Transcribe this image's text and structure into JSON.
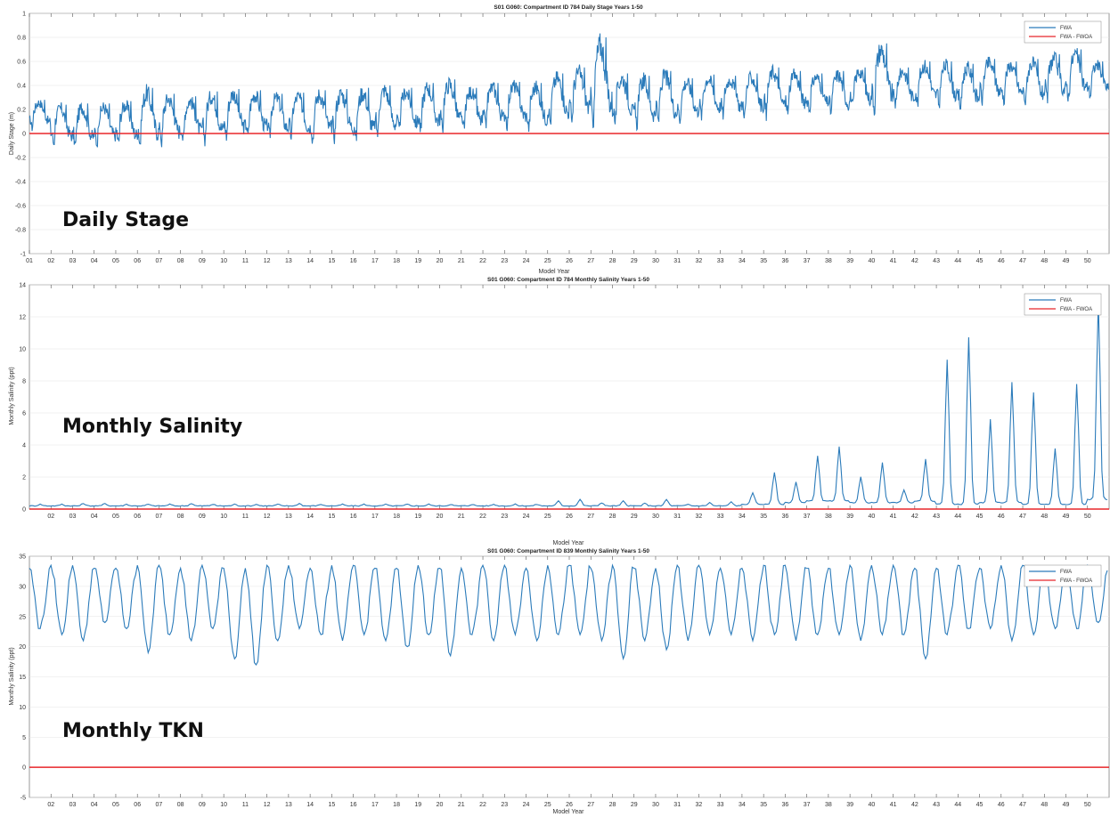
{
  "colors": {
    "fwa": "#2b7bba",
    "diff": "#e8262a",
    "grid": "#e6e6e6"
  },
  "chart_data": [
    {
      "type": "line",
      "title": "S01 G060: Compartment ID 784 Daily Stage Years 1-50",
      "xlabel": "Model Year",
      "ylabel": "Daily Stage (m)",
      "overlay_label": "Daily Stage",
      "ylim": [
        -1,
        1
      ],
      "yticks": [
        "1",
        "0.8",
        "0.6",
        "0.4",
        "0.2",
        "0",
        "-0.2",
        "-0.4",
        "-0.6",
        "-0.8",
        "-1"
      ],
      "xticks": [
        "01",
        "02",
        "03",
        "04",
        "05",
        "06",
        "07",
        "08",
        "09",
        "10",
        "11",
        "12",
        "13",
        "14",
        "15",
        "16",
        "17",
        "18",
        "19",
        "20",
        "21",
        "22",
        "23",
        "24",
        "25",
        "26",
        "27",
        "28",
        "29",
        "30",
        "31",
        "32",
        "33",
        "34",
        "35",
        "36",
        "37",
        "38",
        "39",
        "40",
        "41",
        "42",
        "43",
        "44",
        "45",
        "46",
        "47",
        "48",
        "49",
        "50"
      ],
      "grid": true,
      "legend_position": "top-right",
      "series": [
        {
          "name": "FWA",
          "x": [
            1,
            2,
            3,
            4,
            5,
            6,
            7,
            8,
            9,
            10,
            11,
            12,
            13,
            14,
            15,
            16,
            17,
            18,
            19,
            20,
            21,
            22,
            23,
            24,
            25,
            26,
            27,
            28,
            29,
            30,
            31,
            32,
            33,
            34,
            35,
            36,
            37,
            38,
            39,
            40,
            41,
            42,
            43,
            44,
            45,
            46,
            47,
            48,
            49,
            50
          ],
          "y_peak": [
            0.28,
            0.24,
            0.25,
            0.25,
            0.27,
            0.38,
            0.33,
            0.31,
            0.35,
            0.37,
            0.36,
            0.33,
            0.34,
            0.36,
            0.37,
            0.38,
            0.4,
            0.38,
            0.42,
            0.45,
            0.38,
            0.42,
            0.43,
            0.42,
            0.5,
            0.55,
            0.8,
            0.5,
            0.48,
            0.52,
            0.46,
            0.49,
            0.48,
            0.5,
            0.55,
            0.52,
            0.5,
            0.52,
            0.55,
            0.75,
            0.55,
            0.6,
            0.6,
            0.58,
            0.62,
            0.6,
            0.62,
            0.66,
            0.7,
            0.6
          ],
          "y_trough": [
            0.05,
            -0.08,
            -0.1,
            -0.08,
            -0.08,
            -0.08,
            -0.06,
            -0.05,
            -0.04,
            -0.02,
            -0.02,
            -0.02,
            -0.02,
            -0.04,
            -0.02,
            -0.04,
            0.0,
            0.02,
            0.03,
            0.04,
            0.03,
            0.06,
            0.08,
            0.05,
            0.1,
            0.12,
            0.12,
            0.1,
            0.08,
            0.1,
            0.12,
            0.15,
            0.16,
            0.16,
            0.17,
            0.18,
            0.2,
            0.18,
            0.22,
            0.22,
            0.24,
            0.25,
            0.24,
            0.22,
            0.28,
            0.28,
            0.26,
            0.28,
            0.3,
            0.32
          ]
        },
        {
          "name": "FWA - FWOA",
          "x": [
            1,
            50
          ],
          "y": [
            0,
            0
          ]
        }
      ]
    },
    {
      "type": "line",
      "title": "S01 G060: Compartment ID 784 Monthly Salinity Years 1-50",
      "xlabel": "Model Year",
      "ylabel": "Monthly Salinity (ppt)",
      "overlay_label": "Monthly Salinity",
      "ylim": [
        0,
        14
      ],
      "yticks": [
        "14",
        "12",
        "10",
        "8",
        "6",
        "4",
        "2",
        "0"
      ],
      "xticks": [
        "02",
        "03",
        "04",
        "05",
        "06",
        "07",
        "08",
        "09",
        "10",
        "11",
        "12",
        "13",
        "14",
        "15",
        "16",
        "17",
        "18",
        "19",
        "20",
        "21",
        "22",
        "23",
        "24",
        "25",
        "26",
        "27",
        "28",
        "29",
        "30",
        "31",
        "32",
        "33",
        "34",
        "35",
        "36",
        "37",
        "38",
        "39",
        "40",
        "41",
        "42",
        "43",
        "44",
        "45",
        "46",
        "47",
        "48",
        "49",
        "50"
      ],
      "grid": true,
      "legend_position": "top-right",
      "series": [
        {
          "name": "FWA",
          "x": [
            1,
            2,
            3,
            4,
            5,
            6,
            7,
            8,
            9,
            10,
            11,
            12,
            13,
            14,
            15,
            16,
            17,
            18,
            19,
            20,
            21,
            22,
            23,
            24,
            25,
            26,
            27,
            28,
            29,
            30,
            31,
            32,
            33,
            34,
            35,
            36,
            37,
            38,
            39,
            40,
            41,
            42,
            43,
            44,
            45,
            46,
            47,
            48,
            49,
            50
          ],
          "y_peak": [
            0.3,
            0.3,
            0.35,
            0.35,
            0.3,
            0.3,
            0.3,
            0.35,
            0.3,
            0.3,
            0.3,
            0.3,
            0.35,
            0.3,
            0.3,
            0.3,
            0.3,
            0.3,
            0.3,
            0.3,
            0.3,
            0.3,
            0.3,
            0.3,
            0.5,
            0.6,
            0.4,
            0.5,
            0.35,
            0.6,
            0.3,
            0.4,
            0.45,
            1.0,
            2.3,
            1.7,
            3.3,
            3.9,
            2.0,
            2.9,
            1.2,
            3.1,
            9.3,
            10.7,
            5.6,
            7.9,
            7.3,
            3.8,
            7.8,
            13.0
          ],
          "y_trough": [
            0.2,
            0.2,
            0.2,
            0.2,
            0.2,
            0.2,
            0.2,
            0.2,
            0.2,
            0.2,
            0.2,
            0.2,
            0.2,
            0.2,
            0.2,
            0.2,
            0.2,
            0.2,
            0.2,
            0.2,
            0.2,
            0.2,
            0.2,
            0.2,
            0.2,
            0.2,
            0.2,
            0.2,
            0.2,
            0.2,
            0.2,
            0.2,
            0.2,
            0.3,
            0.3,
            0.4,
            0.5,
            0.5,
            0.4,
            0.4,
            0.4,
            0.5,
            0.3,
            0.3,
            0.4,
            0.4,
            0.3,
            0.3,
            0.3,
            0.6
          ]
        },
        {
          "name": "FWA - FWOA",
          "x": [
            1,
            50
          ],
          "y": [
            0,
            0
          ]
        }
      ]
    },
    {
      "type": "line",
      "title": "S01 G060: Compartment ID 839 Monthly Salinity Years 1-50",
      "xlabel": "Model Year",
      "ylabel": "Monthly Salinity (ppt)",
      "overlay_label": "Monthly TKN",
      "ylim": [
        -5,
        35
      ],
      "yticks": [
        "35",
        "30",
        "25",
        "20",
        "15",
        "10",
        "5",
        "0",
        "-5"
      ],
      "xticks": [
        "02",
        "03",
        "04",
        "05",
        "06",
        "07",
        "08",
        "09",
        "10",
        "11",
        "12",
        "13",
        "14",
        "15",
        "16",
        "17",
        "18",
        "19",
        "20",
        "21",
        "22",
        "23",
        "24",
        "25",
        "26",
        "27",
        "28",
        "29",
        "30",
        "31",
        "32",
        "33",
        "34",
        "35",
        "36",
        "37",
        "38",
        "39",
        "40",
        "41",
        "42",
        "43",
        "44",
        "45",
        "46",
        "47",
        "48",
        "49",
        "50"
      ],
      "grid": true,
      "legend_position": "top-right",
      "series": [
        {
          "name": "FWA",
          "x": [
            1,
            2,
            3,
            4,
            5,
            6,
            7,
            8,
            9,
            10,
            11,
            12,
            13,
            14,
            15,
            16,
            17,
            18,
            19,
            20,
            21,
            22,
            23,
            24,
            25,
            26,
            27,
            28,
            29,
            30,
            31,
            32,
            33,
            34,
            35,
            36,
            37,
            38,
            39,
            40,
            41,
            42,
            43,
            44,
            45,
            46,
            47,
            48,
            49,
            50
          ],
          "y_peak": [
            33,
            33.5,
            33.5,
            33,
            33,
            33.5,
            33.5,
            33,
            33.5,
            33,
            33,
            33.5,
            33.5,
            33,
            33.5,
            33.5,
            33,
            33,
            33.5,
            33,
            33,
            33.5,
            33.5,
            33,
            33.5,
            33.5,
            33,
            33.5,
            33,
            33,
            33.5,
            33.5,
            33,
            33,
            33.5,
            33.5,
            33,
            33,
            33.5,
            33.5,
            33.5,
            33,
            33,
            33.5,
            33,
            33.5,
            33.5,
            33,
            33.5,
            33.5
          ],
          "y_trough": [
            23,
            22,
            21,
            24,
            23,
            19,
            22,
            21,
            23,
            18,
            17,
            21,
            23,
            22,
            21,
            22,
            21,
            20,
            22,
            18.5,
            22,
            21,
            22,
            21,
            22,
            22,
            21,
            18,
            21,
            19.5,
            21,
            22,
            22,
            21,
            22,
            21,
            22,
            22,
            21,
            22,
            22,
            18,
            22,
            23,
            23,
            21,
            22,
            23,
            23,
            24
          ]
        },
        {
          "name": "FWA - FWOA",
          "x": [
            1,
            50
          ],
          "y": [
            0,
            0
          ]
        }
      ]
    }
  ]
}
